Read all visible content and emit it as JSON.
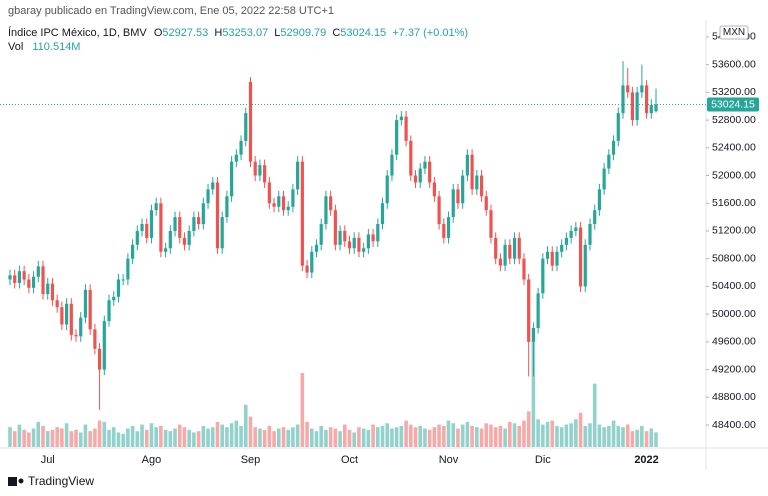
{
  "header": {
    "text": "gbaray publicado en TradingView.com, Ene 05, 2022 22:58 UTC+1"
  },
  "footer": {
    "brand": "TradingView"
  },
  "chart_data": {
    "type": "candlestick",
    "title": "Índice IPC México, 1D, BMV",
    "currency": "MXN",
    "legend_labels": {
      "open": "O",
      "high": "H",
      "low": "L",
      "close": "C"
    },
    "change_label": "+7.37 (+0.01%)",
    "up_color": "#26a69a",
    "down_color": "#ef5350",
    "grid": false,
    "ylim": [
      48083,
      54215
    ],
    "yticks": [
      {
        "value": 48400,
        "label": "48400.00"
      },
      {
        "value": 48800,
        "label": "48800.00"
      },
      {
        "value": 49200,
        "label": "49200.00"
      },
      {
        "value": 49600,
        "label": "49600.00"
      },
      {
        "value": 50000,
        "label": "50000.00"
      },
      {
        "value": 50400,
        "label": "50400.00"
      },
      {
        "value": 50800,
        "label": "50800.00"
      },
      {
        "value": 51200,
        "label": "51200.00"
      },
      {
        "value": 51600,
        "label": "51600.00"
      },
      {
        "value": 52000,
        "label": "52000.00"
      },
      {
        "value": 52400,
        "label": "52400.00"
      },
      {
        "value": 52800,
        "label": "52800.00"
      },
      {
        "value": 53200,
        "label": "53200.00"
      },
      {
        "value": 53600,
        "label": "53600.00"
      },
      {
        "value": 54000,
        "label": "54000.00"
      }
    ],
    "categories": [
      null,
      null,
      null,
      null,
      null,
      null,
      null,
      null,
      "Jul",
      null,
      null,
      null,
      null,
      null,
      null,
      null,
      null,
      null,
      null,
      null,
      null,
      null,
      null,
      null,
      null,
      null,
      null,
      null,
      null,
      null,
      "Ago",
      null,
      null,
      null,
      null,
      null,
      null,
      null,
      null,
      null,
      null,
      null,
      null,
      null,
      null,
      null,
      null,
      null,
      null,
      null,
      null,
      "Sep",
      null,
      null,
      null,
      null,
      null,
      null,
      null,
      null,
      null,
      null,
      null,
      null,
      null,
      null,
      null,
      null,
      null,
      null,
      null,
      null,
      "Oct",
      null,
      null,
      null,
      null,
      null,
      null,
      null,
      null,
      null,
      null,
      null,
      null,
      null,
      null,
      null,
      null,
      null,
      null,
      null,
      null,
      "Nov",
      null,
      null,
      null,
      null,
      null,
      null,
      null,
      null,
      null,
      null,
      null,
      null,
      null,
      null,
      null,
      null,
      null,
      null,
      null,
      "Dic",
      null,
      null,
      null,
      null,
      null,
      null,
      null,
      null,
      null,
      null,
      null,
      null,
      null,
      null,
      null,
      null,
      null,
      null,
      null,
      null,
      null,
      "2022",
      null,
      null
    ],
    "open": [
      50500,
      50560,
      50450,
      50620,
      50500,
      50380,
      50540,
      50690,
      50290,
      50440,
      50200,
      50100,
      49850,
      50150,
      49700,
      49680,
      49950,
      50350,
      49780,
      49500,
      49200,
      49900,
      50200,
      50250,
      50500,
      50500,
      50800,
      51000,
      51200,
      51300,
      51100,
      51500,
      51600,
      50900,
      50950,
      51200,
      51400,
      51100,
      51000,
      51200,
      51400,
      51300,
      51600,
      51800,
      51900,
      50950,
      51400,
      51700,
      52200,
      52300,
      52500,
      53350,
      52200,
      52000,
      52150,
      51900,
      51600,
      51550,
      51700,
      51500,
      51550,
      51800,
      52200,
      50700,
      50600,
      50900,
      51000,
      51300,
      51700,
      51500,
      51000,
      51200,
      51050,
      50950,
      51100,
      50900,
      50950,
      51150,
      51050,
      51300,
      51600,
      52000,
      52300,
      52800,
      52850,
      52500,
      52000,
      51900,
      52100,
      52200,
      51900,
      51700,
      51300,
      51100,
      51400,
      51800,
      51600,
      52000,
      52300,
      51800,
      52000,
      51700,
      51500,
      51100,
      50800,
      50700,
      51000,
      50800,
      51100,
      50800,
      50500,
      49600,
      49800,
      50300,
      50800,
      50900,
      50700,
      50900,
      51000,
      51100,
      51200,
      51250,
      50400,
      51000,
      51300,
      51500,
      51800,
      52100,
      52300,
      52500,
      52900,
      53300,
      53200,
      52800,
      53200,
      53300,
      52900,
      52927.53
    ],
    "high": [
      50640,
      50640,
      50700,
      50700,
      50580,
      50620,
      50770,
      50770,
      50520,
      50520,
      50280,
      50180,
      50230,
      50230,
      49780,
      50030,
      50430,
      50430,
      49860,
      49580,
      49980,
      50280,
      50330,
      50580,
      50580,
      50880,
      51080,
      51280,
      51380,
      51380,
      51580,
      51680,
      51680,
      51030,
      51280,
      51480,
      51480,
      51180,
      51280,
      51480,
      51480,
      51680,
      51880,
      51980,
      51980,
      51480,
      51780,
      52280,
      52380,
      52580,
      52980,
      53420,
      52280,
      52230,
      52230,
      51980,
      51680,
      51780,
      51780,
      51630,
      51880,
      52280,
      52280,
      50780,
      50980,
      51080,
      51380,
      51780,
      51780,
      51580,
      51280,
      51280,
      51130,
      51180,
      51180,
      51030,
      51230,
      51230,
      51380,
      51680,
      52080,
      52380,
      52880,
      52930,
      52930,
      52580,
      52080,
      52180,
      52280,
      52280,
      51980,
      51780,
      51380,
      51480,
      51880,
      51880,
      52080,
      52380,
      52380,
      52080,
      52080,
      51780,
      51580,
      51180,
      50880,
      51080,
      51080,
      51180,
      51180,
      50880,
      50580,
      49880,
      50380,
      50880,
      50980,
      50980,
      50980,
      51080,
      51180,
      51280,
      51330,
      51330,
      51080,
      51380,
      51580,
      51880,
      52180,
      52380,
      52580,
      52980,
      53650,
      53550,
      53280,
      53280,
      53600,
      53380,
      53100,
      53253.07
    ],
    "low": [
      50420,
      50370,
      50370,
      50420,
      50300,
      50300,
      50460,
      50210,
      50210,
      50120,
      50020,
      49770,
      49770,
      49620,
      49600,
      49600,
      49870,
      49700,
      49420,
      48620,
      49120,
      49820,
      50120,
      50170,
      50420,
      50420,
      50720,
      50920,
      51120,
      51020,
      51020,
      51420,
      50820,
      50820,
      50870,
      51120,
      51020,
      50920,
      50920,
      51120,
      51220,
      51220,
      51520,
      51720,
      50870,
      50870,
      51320,
      51620,
      52120,
      52220,
      52420,
      52120,
      51920,
      51920,
      51820,
      51520,
      51470,
      51470,
      51420,
      51420,
      51470,
      51720,
      50620,
      50520,
      50520,
      50820,
      50920,
      51220,
      51420,
      50920,
      50920,
      50970,
      50870,
      50870,
      50820,
      50820,
      50870,
      50970,
      50970,
      51220,
      51520,
      51920,
      52220,
      52720,
      52420,
      51920,
      51820,
      51820,
      52020,
      51820,
      51620,
      51220,
      51020,
      51020,
      51320,
      51520,
      51520,
      51920,
      51720,
      51720,
      51620,
      51420,
      51020,
      50720,
      50620,
      50620,
      50720,
      50720,
      50720,
      50420,
      49100,
      49100,
      49720,
      50220,
      50720,
      50620,
      50620,
      50820,
      50920,
      51020,
      51120,
      50320,
      50320,
      50920,
      51220,
      51420,
      51720,
      52020,
      52220,
      52420,
      52820,
      53120,
      52720,
      52720,
      53120,
      52820,
      52820,
      52909.79
    ],
    "close": [
      50560,
      50450,
      50620,
      50500,
      50380,
      50540,
      50690,
      50290,
      50440,
      50200,
      50100,
      49850,
      50150,
      49700,
      49680,
      49950,
      50350,
      49780,
      49500,
      49200,
      49900,
      50200,
      50250,
      50500,
      50500,
      50800,
      51000,
      51200,
      51300,
      51100,
      51500,
      51600,
      50900,
      50950,
      51200,
      51400,
      51100,
      51000,
      51200,
      51400,
      51300,
      51600,
      51800,
      51900,
      50950,
      51400,
      51700,
      52200,
      52300,
      52500,
      52900,
      52200,
      52000,
      52150,
      51900,
      51600,
      51550,
      51700,
      51500,
      51550,
      51800,
      52200,
      50700,
      50600,
      50900,
      51000,
      51300,
      51700,
      51500,
      51000,
      51200,
      51050,
      50950,
      51100,
      50900,
      50950,
      51150,
      51050,
      51300,
      51600,
      52000,
      52300,
      52800,
      52850,
      52500,
      52000,
      51900,
      52100,
      52200,
      51900,
      51700,
      51300,
      51100,
      51400,
      51800,
      51600,
      52000,
      52300,
      51800,
      52000,
      51700,
      51500,
      51100,
      50800,
      50700,
      51000,
      50800,
      51100,
      50800,
      50500,
      49600,
      49800,
      50300,
      50800,
      50900,
      50700,
      50900,
      51000,
      51100,
      51200,
      51250,
      50400,
      51000,
      51300,
      51500,
      51800,
      52100,
      52300,
      52500,
      52900,
      53300,
      53200,
      52800,
      53200,
      53300,
      52900,
      53016.78,
      53024.15
    ],
    "volume": {
      "name": "Vol",
      "last_label": "110.514M",
      "vlim": [
        0,
        3220
      ],
      "values": [
        150,
        120,
        170,
        130,
        110,
        140,
        190,
        160,
        120,
        130,
        150,
        140,
        180,
        120,
        130,
        110,
        170,
        120,
        140,
        200,
        190,
        130,
        150,
        110,
        100,
        140,
        160,
        120,
        170,
        130,
        180,
        150,
        160,
        130,
        120,
        140,
        170,
        150,
        130,
        110,
        120,
        160,
        140,
        150,
        190,
        170,
        150,
        180,
        200,
        160,
        320,
        230,
        150,
        140,
        130,
        160,
        120,
        140,
        150,
        130,
        150,
        170,
        560,
        190,
        140,
        120,
        160,
        130,
        150,
        140,
        120,
        170,
        130,
        110,
        150,
        140,
        130,
        170,
        150,
        160,
        180,
        140,
        150,
        160,
        200,
        170,
        150,
        160,
        140,
        130,
        150,
        170,
        160,
        200,
        180,
        140,
        170,
        190,
        160,
        150,
        140,
        180,
        170,
        150,
        160,
        140,
        190,
        180,
        160,
        200,
        270,
        810,
        210,
        170,
        190,
        200,
        160,
        150,
        170,
        180,
        210,
        260,
        160,
        180,
        480,
        170,
        150,
        160,
        200,
        160,
        150,
        170,
        120,
        130,
        160,
        120,
        140,
        110.514
      ]
    }
  }
}
